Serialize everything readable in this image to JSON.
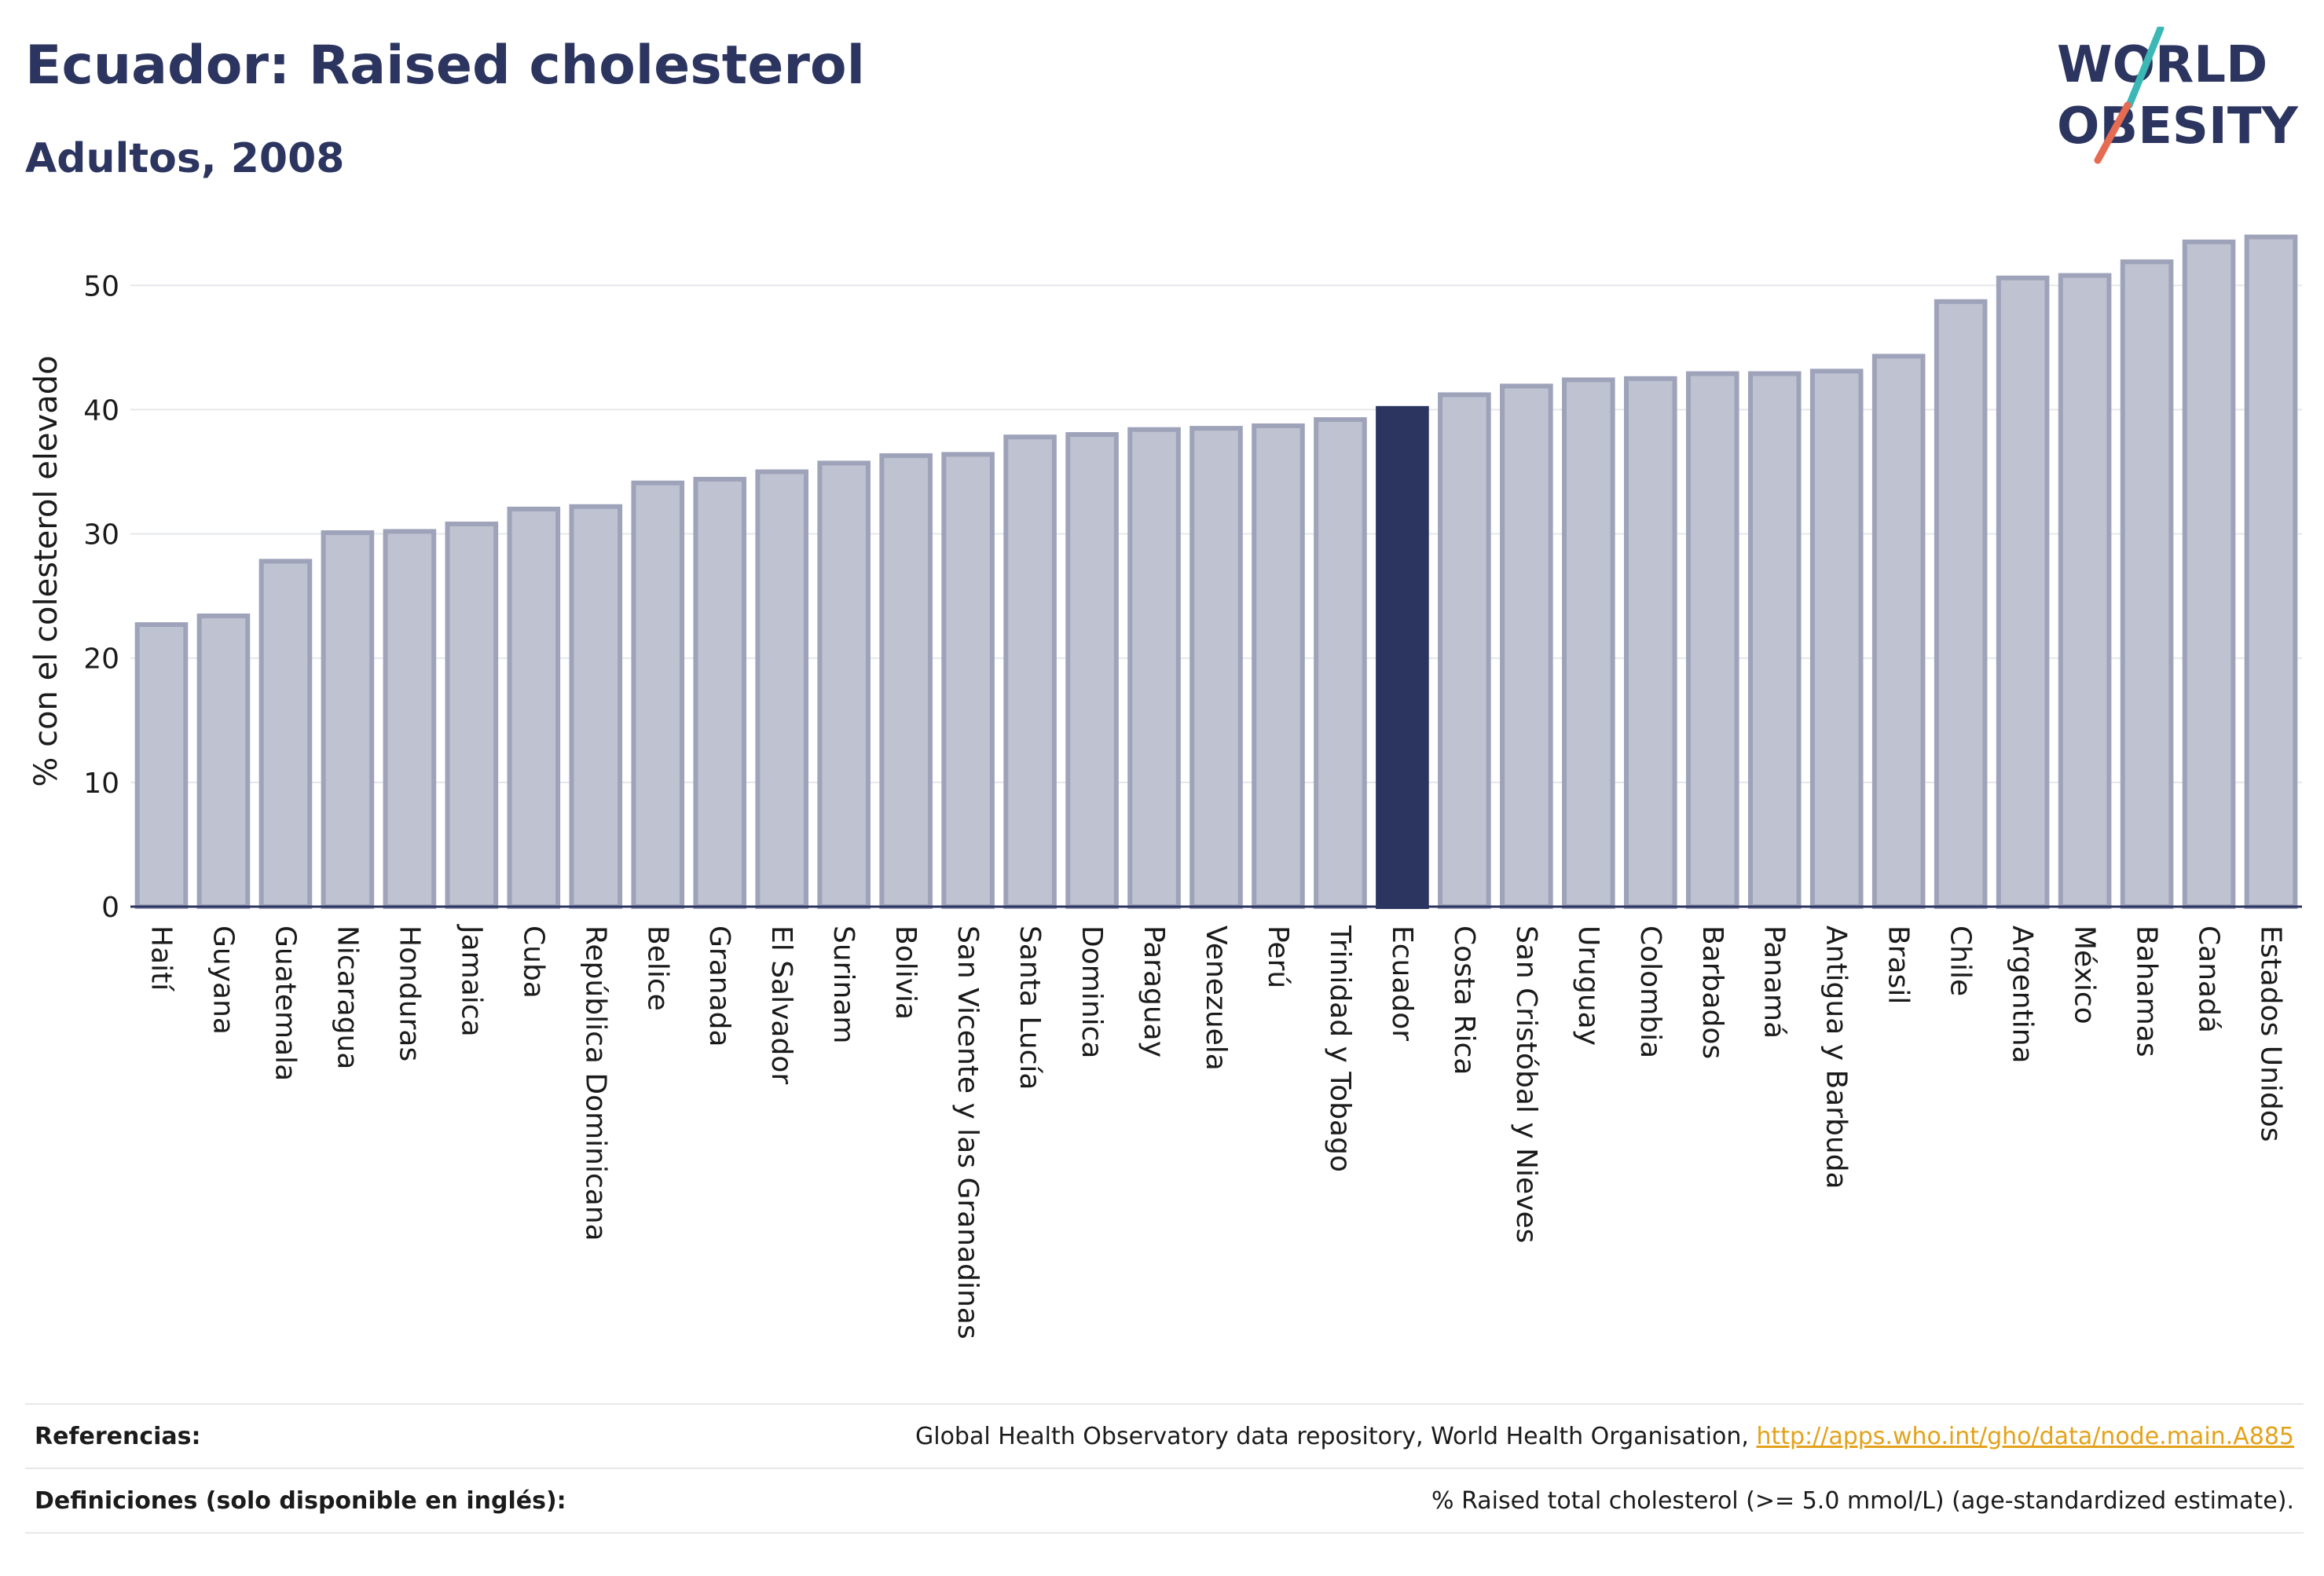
{
  "header": {
    "title": "Ecuador: Raised cholesterol",
    "subtitle": "Adultos, 2008"
  },
  "logo": {
    "line1": "WORLD",
    "line2": "OBESITY"
  },
  "colors": {
    "bar": "#bfc2d0",
    "bar_border": "#9ea3ba",
    "highlight": "#2c3560",
    "grid": "#e6e7eb"
  },
  "chart_data": {
    "type": "bar",
    "ylabel": "% con el colesterol elevado",
    "xlabel": "",
    "ylim": [
      0,
      54
    ],
    "yticks": [
      0,
      10,
      20,
      30,
      40,
      50
    ],
    "grid": true,
    "highlight": "Ecuador",
    "categories": [
      "Haití",
      "Guyana",
      "Guatemala",
      "Nicaragua",
      "Honduras",
      "Jamaica",
      "Cuba",
      "República Dominicana",
      "Belice",
      "Granada",
      "El Salvador",
      "Surinam",
      "Bolivia",
      "San Vicente y las Granadinas",
      "Santa Lucía",
      "Dominica",
      "Paraguay",
      "Venezuela",
      "Perú",
      "Trinidad y Tobago",
      "Ecuador",
      "Costa Rica",
      "San Cristóbal y Nieves",
      "Uruguay",
      "Colombia",
      "Barbados",
      "Panamá",
      "Antigua y Barbuda",
      "Brasil",
      "Chile",
      "Argentina",
      "México",
      "Bahamas",
      "Canadá",
      "Estados Unidos"
    ],
    "values": [
      22.7,
      23.4,
      27.8,
      30.1,
      30.2,
      30.8,
      32.0,
      32.2,
      34.1,
      34.4,
      35.0,
      35.7,
      36.3,
      36.4,
      37.8,
      38.0,
      38.4,
      38.5,
      38.7,
      39.2,
      40.1,
      41.2,
      41.9,
      42.4,
      42.5,
      42.9,
      42.9,
      43.1,
      44.3,
      48.7,
      50.6,
      50.8,
      51.9,
      53.5,
      53.9
    ]
  },
  "footer": {
    "references_label": "Referencias:",
    "references_text": "Global Health Observatory data repository, World Health Organisation,",
    "references_link": "http://apps.who.int/gho/data/node.main.A885",
    "definitions_label": "Definiciones (solo disponible en inglés):",
    "definitions_text": "% Raised total cholesterol (>= 5.0 mmol/L) (age-standardized estimate)."
  }
}
